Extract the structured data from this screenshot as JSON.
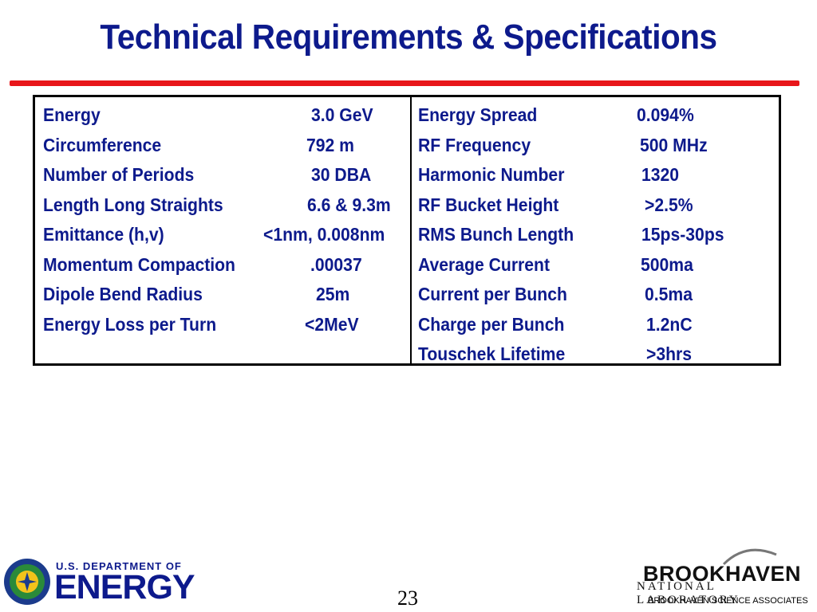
{
  "title": "Technical Requirements & Specifications",
  "colors": {
    "title": "#0d1a8c",
    "rule": "#e8161a",
    "text": "#0d1a8c",
    "doe_green": "#2a8a3a"
  },
  "left_specs": [
    {
      "label": "Energy",
      "value": "3.0 GeV"
    },
    {
      "label": "Circumference",
      "value": "792 m"
    },
    {
      "label": "Number of Periods",
      "value": "30 DBA"
    },
    {
      "label": "Length Long Straights",
      "value": "6.6 & 9.3m"
    },
    {
      "label": "Emittance (h,v)",
      "value": "<1nm, 0.008nm"
    },
    {
      "label": "Momentum Compaction",
      "value": ".00037"
    },
    {
      "label": "Dipole Bend Radius",
      "value": "25m"
    },
    {
      "label": "Energy Loss per Turn",
      "value": "<2MeV"
    }
  ],
  "right_specs": [
    {
      "label": "Energy Spread",
      "value": "0.094%"
    },
    {
      "label": "RF Frequency",
      "value": "500 MHz"
    },
    {
      "label": "Harmonic Number",
      "value": "1320"
    },
    {
      "label": "RF Bucket Height",
      "value": ">2.5%"
    },
    {
      "label": "RMS Bunch Length",
      "value": "15ps-30ps"
    },
    {
      "label": "Average Current",
      "value": "500ma"
    },
    {
      "label": "Current per Bunch",
      "value": "0.5ma"
    },
    {
      "label": "Charge per Bunch",
      "value": "1.2nC"
    },
    {
      "label": "Touschek Lifetime",
      "value": ">3hrs"
    }
  ],
  "footer": {
    "doe_line1": "U.S. DEPARTMENT OF",
    "doe_line2": "ENERGY",
    "page_number": "23",
    "bnl_name": "BROOKHAVEN",
    "bnl_sub": "NATIONAL LABORATORY",
    "bnl_assoc": "BROOKHAVEN SCIENCE ASSOCIATES"
  }
}
